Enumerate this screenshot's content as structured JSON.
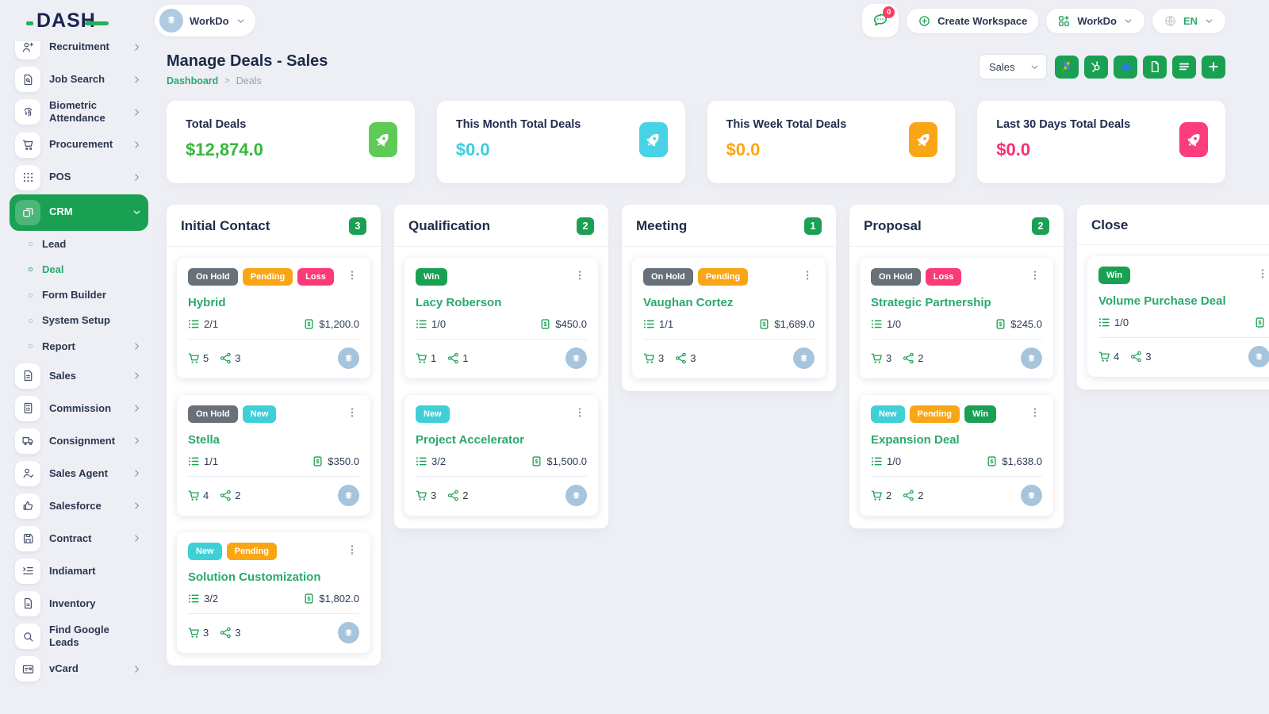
{
  "logo_text": "DASH",
  "topbar": {
    "workspace_label": "WorkDo",
    "messages_badge": "0",
    "create_workspace_label": "Create Workspace",
    "apps_menu_label": "WorkDo",
    "language_label": "EN"
  },
  "page": {
    "title": "Manage Deals - Sales",
    "breadcrumb_home": "Dashboard",
    "breadcrumb_sep": ">",
    "breadcrumb_current": "Deals",
    "pipeline_selected": "Sales"
  },
  "toolbar_buttons": [
    {
      "icon": "google-ads",
      "name": "google-ads-sync-button"
    },
    {
      "icon": "hubspot",
      "name": "hubspot-sync-button"
    },
    {
      "icon": "onedrive",
      "name": "cloud-sync-button"
    },
    {
      "icon": "document",
      "name": "export-document-button"
    },
    {
      "icon": "list-lines",
      "name": "list-view-button"
    },
    {
      "icon": "plus",
      "name": "add-deal-button"
    }
  ],
  "stats": [
    {
      "label": "Total Deals",
      "value": "$12,874.0",
      "accent": "#35b83b",
      "icon_bg": "#5ecb57"
    },
    {
      "label": "This Month Total Deals",
      "value": "$0.0",
      "accent": "#3fcbe0",
      "icon_bg": "#47d2e6"
    },
    {
      "label": "This Week Total Deals",
      "value": "$0.0",
      "accent": "#f9a616",
      "icon_bg": "#f9a616"
    },
    {
      "label": "Last 30 Days Total Deals",
      "value": "$0.0",
      "accent": "#fb2e72",
      "icon_bg": "#fb3c7e"
    }
  ],
  "label_colors": {
    "gray": "#68707a",
    "orange": "#f9a616",
    "pink": "#fc3a78",
    "cyan": "#3ed0d6",
    "green": "#1aa053"
  },
  "theme": {
    "primary": "#1aa053",
    "link_green": "#2aa96e",
    "avatar_bg": "#a6c4dc"
  },
  "sidebar": [
    {
      "label": "Recruitment",
      "icon": "person-plus",
      "chevron": true
    },
    {
      "label": "Job Search",
      "icon": "doc-search",
      "chevron": true
    },
    {
      "label": "Biometric Attendance",
      "icon": "fingerprint",
      "chevron": true
    },
    {
      "label": "Procurement",
      "icon": "cart",
      "chevron": true
    },
    {
      "label": "POS",
      "icon": "grid-dots",
      "chevron": true
    },
    {
      "label": "CRM",
      "icon": "crm-box",
      "active": true,
      "expanded": true
    },
    {
      "label": "Lead",
      "sub": true
    },
    {
      "label": "Deal",
      "sub": true,
      "active": true
    },
    {
      "label": "Form Builder",
      "sub": true
    },
    {
      "label": "System Setup",
      "sub": true
    },
    {
      "label": "Report",
      "sub": true,
      "chevron": true
    },
    {
      "label": "Sales",
      "icon": "sales-doc",
      "chevron": true
    },
    {
      "label": "Commission",
      "icon": "calculator",
      "chevron": true
    },
    {
      "label": "Consignment",
      "icon": "truck",
      "chevron": true
    },
    {
      "label": "Sales Agent",
      "icon": "person-check",
      "chevron": true
    },
    {
      "label": "Salesforce",
      "icon": "thumbs-up",
      "chevron": true
    },
    {
      "label": "Contract",
      "icon": "floppy",
      "chevron": true
    },
    {
      "label": "Indiamart",
      "icon": "indent-list"
    },
    {
      "label": "Inventory",
      "icon": "file"
    },
    {
      "label": "Find Google Leads",
      "icon": "search"
    },
    {
      "label": "vCard",
      "icon": "id-card",
      "chevron": true
    }
  ],
  "board": [
    {
      "name": "Initial Contact",
      "count": "3",
      "cards": [
        {
          "labels": [
            {
              "text": "On Hold",
              "color": "gray"
            },
            {
              "text": "Pending",
              "color": "orange"
            },
            {
              "text": "Loss",
              "color": "pink"
            }
          ],
          "title": "Hybrid",
          "tasks": "2/1",
          "value": "$1,200.0",
          "products": "5",
          "users": "3"
        },
        {
          "labels": [
            {
              "text": "On Hold",
              "color": "gray"
            },
            {
              "text": "New",
              "color": "cyan"
            }
          ],
          "title": "Stella",
          "tasks": "1/1",
          "value": "$350.0",
          "products": "4",
          "users": "2"
        },
        {
          "labels": [
            {
              "text": "New",
              "color": "cyan"
            },
            {
              "text": "Pending",
              "color": "orange"
            }
          ],
          "title": "Solution Customization",
          "tasks": "3/2",
          "value": "$1,802.0",
          "products": "3",
          "users": "3"
        }
      ]
    },
    {
      "name": "Qualification",
      "count": "2",
      "cards": [
        {
          "labels": [
            {
              "text": "Win",
              "color": "green"
            }
          ],
          "title": "Lacy Roberson",
          "tasks": "1/0",
          "value": "$450.0",
          "products": "1",
          "users": "1"
        },
        {
          "labels": [
            {
              "text": "New",
              "color": "cyan"
            }
          ],
          "title": "Project Accelerator",
          "tasks": "3/2",
          "value": "$1,500.0",
          "products": "3",
          "users": "2"
        }
      ]
    },
    {
      "name": "Meeting",
      "count": "1",
      "cards": [
        {
          "labels": [
            {
              "text": "On Hold",
              "color": "gray"
            },
            {
              "text": "Pending",
              "color": "orange"
            }
          ],
          "title": "Vaughan Cortez",
          "tasks": "1/1",
          "value": "$1,689.0",
          "products": "3",
          "users": "3"
        }
      ]
    },
    {
      "name": "Proposal",
      "count": "2",
      "cards": [
        {
          "labels": [
            {
              "text": "On Hold",
              "color": "gray"
            },
            {
              "text": "Loss",
              "color": "pink"
            }
          ],
          "title": "Strategic Partnership",
          "tasks": "1/0",
          "value": "$245.0",
          "products": "3",
          "users": "2"
        },
        {
          "labels": [
            {
              "text": "New",
              "color": "cyan"
            },
            {
              "text": "Pending",
              "color": "orange"
            },
            {
              "text": "Win",
              "color": "green"
            }
          ],
          "title": "Expansion Deal",
          "tasks": "1/0",
          "value": "$1,638.0",
          "products": "2",
          "users": "2"
        }
      ]
    },
    {
      "name": "Close",
      "count": null,
      "cards": [
        {
          "labels": [
            {
              "text": "Win",
              "color": "green"
            }
          ],
          "title": "Volume Purchase Deal",
          "tasks": "1/0",
          "value": "",
          "products": "4",
          "users": "3"
        }
      ]
    }
  ]
}
